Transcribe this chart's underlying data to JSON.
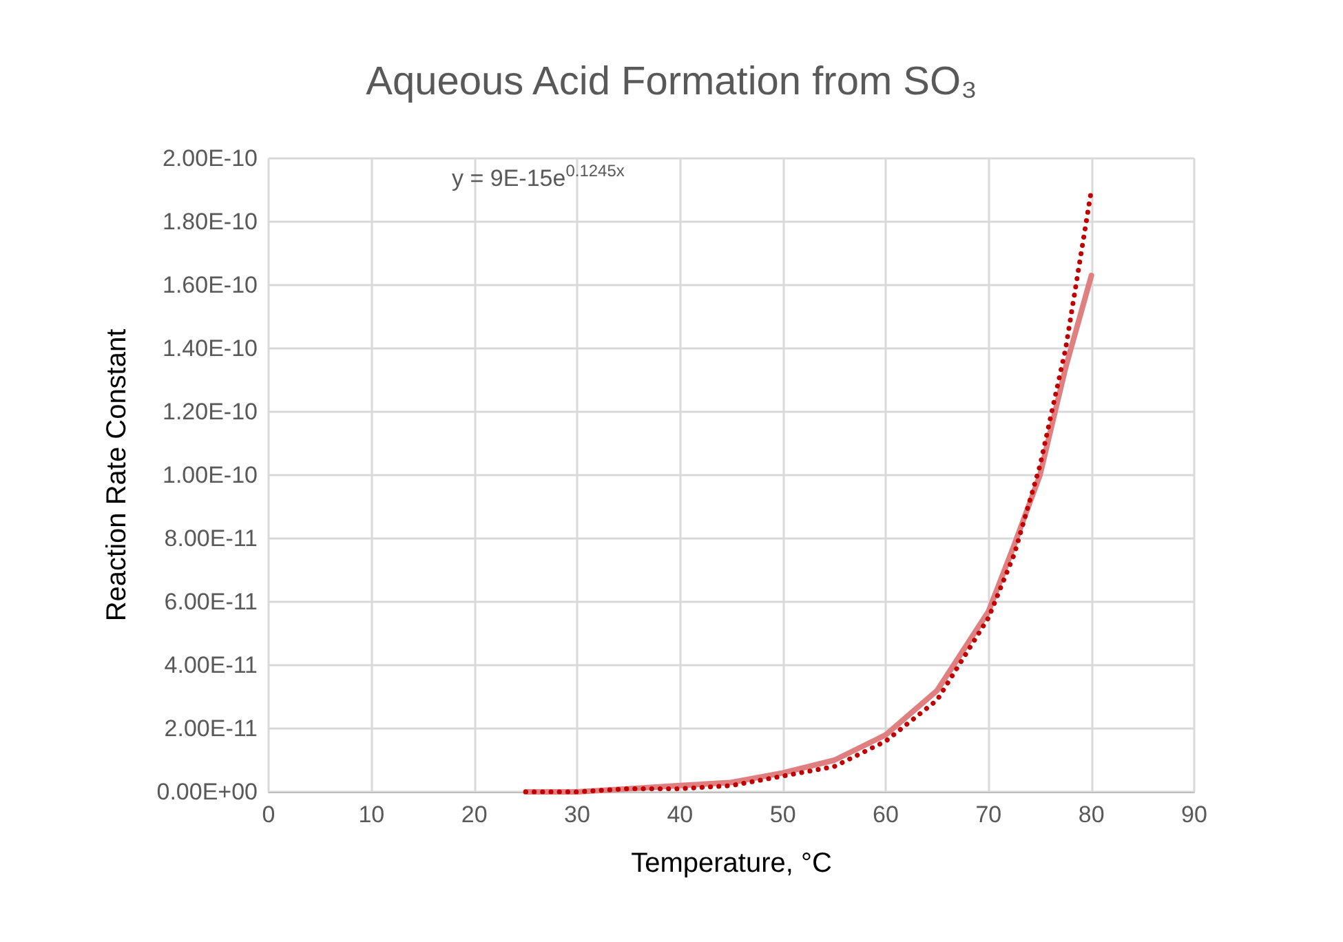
{
  "chart_data": {
    "type": "line",
    "title": "Aqueous Acid Formation from SO₃",
    "xlabel": "Temperature, °C",
    "ylabel": "Reaction Rate Constant",
    "annotations": [
      "y = 9E-15e$^{0.1245x}$"
    ],
    "xlim": [
      0,
      90
    ],
    "xticks": [
      0,
      10,
      20,
      30,
      40,
      50,
      60,
      70,
      80,
      90
    ],
    "ylim": [
      0,
      2e-10
    ],
    "yticks": [
      {
        "value": 0,
        "label": "0.00E+00"
      },
      {
        "value": 2e-11,
        "label": "2.00E-11"
      },
      {
        "value": 4e-11,
        "label": "4.00E-11"
      },
      {
        "value": 6e-11,
        "label": "6.00E-11"
      },
      {
        "value": 8e-11,
        "label": "8.00E-11"
      },
      {
        "value": 1e-10,
        "label": "1.00E-10"
      },
      {
        "value": 1.2e-10,
        "label": "1.20E-10"
      },
      {
        "value": 1.4e-10,
        "label": "1.40E-10"
      },
      {
        "value": 1.6e-10,
        "label": "1.60E-10"
      },
      {
        "value": 1.8e-10,
        "label": "1.80E-10"
      },
      {
        "value": 2e-10,
        "label": "2.00E-10"
      }
    ],
    "grid": true,
    "marker": "none",
    "series": [
      {
        "color": "#e07f7f",
        "line_style": "solid",
        "x": [
          25,
          30,
          35,
          40,
          45,
          50,
          55,
          60,
          65,
          70,
          72.5,
          75,
          77.5,
          80
        ],
        "values": [
          0,
          0,
          1e-12,
          2e-12,
          3e-12,
          6e-12,
          1e-11,
          1.8e-11,
          3.2e-11,
          5.7e-11,
          7.8e-11,
          1e-10,
          1.34e-10,
          1.63e-10
        ]
      },
      {
        "color": "#c00000",
        "line_style": "dotted",
        "x": [
          25,
          30,
          35,
          40,
          45,
          50,
          55,
          60,
          65,
          70,
          72.5,
          75,
          77.5,
          80
        ],
        "values": [
          0,
          0,
          1e-12,
          1e-12,
          2e-12,
          5e-12,
          8e-12,
          1.6e-11,
          2.9e-11,
          5.5e-11,
          7.5e-11,
          1.03e-10,
          1.4e-10,
          1.9e-10
        ]
      }
    ]
  }
}
